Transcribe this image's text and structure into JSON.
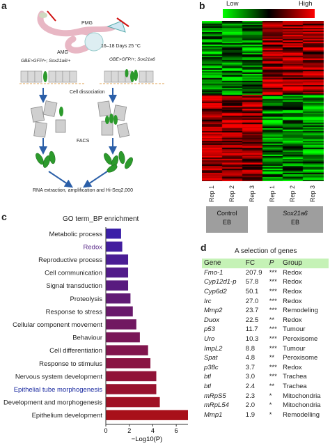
{
  "panel_a": {
    "label": "a",
    "pmg": "PMG",
    "amg": "AMG",
    "conditions": "16–18 Days 25 °C",
    "genotype_left": "GBE>GFP/+; Sox21a6/+",
    "genotype_right": "GBE>GFP/+; Sox21a6",
    "step_dissociation": "Cell dissociation",
    "step_facs": "FACS",
    "step_final": "RNA extraction, amplification and Hi-Seq2,000"
  },
  "panel_b": {
    "label": "b",
    "legend_low": "Low",
    "legend_high": "High",
    "columns": [
      "Rep 1",
      "Rep 2",
      "Rep 3",
      "Rep 1",
      "Rep 2",
      "Rep 3"
    ],
    "group_left_line1": "Control",
    "group_left_line2": "EB",
    "group_right_line1": "Sox21a6",
    "group_right_line2": "EB",
    "colors": {
      "low": "#00ff00",
      "high": "#ff0000",
      "mid": "#000000"
    }
  },
  "panel_c": {
    "label": "c",
    "title": "GO term_BP enrichment",
    "xlabel": "−Log10(P)"
  },
  "chart_data": {
    "type": "bar",
    "orientation": "horizontal",
    "title": "GO term_BP enrichment",
    "xlabel": "−Log10(P)",
    "ylabel": "",
    "xlim": [
      0,
      7
    ],
    "xticks": [
      0,
      2,
      4,
      6
    ],
    "categories": [
      "Metabolic process",
      "Redox",
      "Reproductive process",
      "Cell communication",
      "Signal transduction",
      "Proteolysis",
      "Response to stress",
      "Cellular component movement",
      "Behaviour",
      "Cell differentiation",
      "Response to stimulus",
      "Nervous system development",
      "Epithelial tube morphogenesis",
      "Development and morphogenesis",
      "Epithelium development"
    ],
    "values": [
      1.3,
      1.4,
      1.9,
      1.9,
      1.9,
      2.1,
      2.3,
      2.6,
      2.9,
      3.6,
      3.8,
      4.3,
      4.3,
      4.6,
      7.0
    ],
    "highlighted_categories": [
      "Redox",
      "Epithelial tube morphogenesis"
    ],
    "colors": {
      "top": "#3a1fa8",
      "bottom": "#a8101a",
      "label": "#222222",
      "redox_label": "#5a2a8a",
      "epithelial_label": "#1a2aa0"
    }
  },
  "panel_d": {
    "label": "d",
    "title": "A selection of genes",
    "headers": [
      "Gene",
      "FC",
      "P",
      "Group"
    ],
    "rows": [
      [
        "Fmo-1",
        "207.9",
        "***",
        "Redox"
      ],
      [
        "Cyp12d1-p",
        "57.8",
        "***",
        "Redox"
      ],
      [
        "Cyp6d2",
        "50.1",
        "***",
        "Redox"
      ],
      [
        "Irc",
        "27.0",
        "***",
        "Redox"
      ],
      [
        "Mmp2",
        "23.7",
        "***",
        "Remodeling"
      ],
      [
        "Duox",
        "22.5",
        "**",
        "Redox"
      ],
      [
        "p53",
        "11.7",
        "***",
        "Tumour"
      ],
      [
        "Uro",
        "10.3",
        "***",
        "Peroxisome"
      ],
      [
        "ImpL2",
        "8.8",
        "***",
        "Tumour"
      ],
      [
        "Spat",
        "4.8",
        "**",
        "Peroxisome"
      ],
      [
        "p38c",
        "3.7",
        "***",
        "Redox"
      ],
      [
        "btl",
        "3.0",
        "***",
        "Trachea"
      ],
      [
        "btl",
        "2.4",
        "**",
        "Trachea"
      ],
      [
        "mRpS5",
        "2.3",
        "*",
        "Mitochondria"
      ],
      [
        "mRpL54",
        "2.0",
        "*",
        "Mitochondria"
      ],
      [
        "Mmp1",
        "1.9",
        "*",
        "Remodelling"
      ]
    ],
    "header_bg": "#c5f2b6"
  }
}
